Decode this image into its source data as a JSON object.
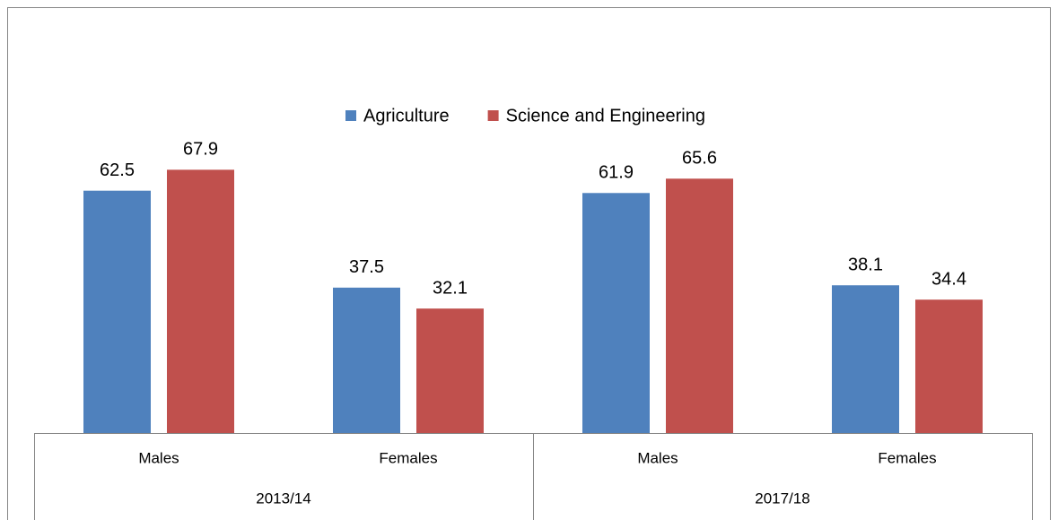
{
  "chart_data": {
    "type": "bar",
    "categories": [
      "Males",
      "Females",
      "Males",
      "Females"
    ],
    "groups": [
      "2013/14",
      "2017/18"
    ],
    "series": [
      {
        "name": "Agriculture",
        "color": "#4f81bd",
        "values": [
          62.5,
          37.5,
          61.9,
          38.1
        ]
      },
      {
        "name": "Science and Engineering",
        "color": "#c0504d",
        "values": [
          67.9,
          32.1,
          65.6,
          34.4
        ]
      }
    ],
    "ylim": [
      0,
      80
    ],
    "legend": "top"
  }
}
